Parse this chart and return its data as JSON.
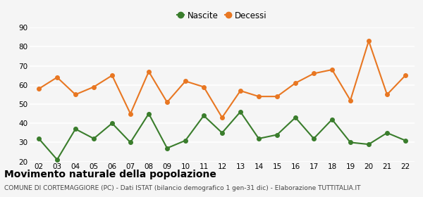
{
  "years": [
    "02",
    "03",
    "04",
    "05",
    "06",
    "07",
    "08",
    "09",
    "10",
    "11",
    "12",
    "13",
    "14",
    "15",
    "16",
    "17",
    "18",
    "19",
    "20",
    "21",
    "22"
  ],
  "nascite": [
    32,
    21,
    37,
    32,
    40,
    30,
    45,
    27,
    31,
    44,
    35,
    46,
    32,
    34,
    43,
    32,
    42,
    30,
    29,
    35,
    31
  ],
  "decessi": [
    58,
    64,
    55,
    59,
    65,
    45,
    67,
    51,
    62,
    59,
    43,
    57,
    54,
    54,
    61,
    66,
    68,
    52,
    83,
    55,
    65
  ],
  "nascite_color": "#3a7d2c",
  "decessi_color": "#e87722",
  "marker": "o",
  "marker_size": 4,
  "line_width": 1.5,
  "title": "Movimento naturale della popolazione",
  "subtitle": "COMUNE DI CORTEMAGGIORE (PC) - Dati ISTAT (bilancio demografico 1 gen-31 dic) - Elaborazione TUTTITALIA.IT",
  "legend_nascite": "Nascite",
  "legend_decessi": "Decessi",
  "ylim": [
    20,
    90
  ],
  "yticks": [
    20,
    30,
    40,
    50,
    60,
    70,
    80,
    90
  ],
  "background_color": "#f5f5f5",
  "grid_color": "#ffffff",
  "title_fontsize": 10,
  "subtitle_fontsize": 6.5,
  "legend_fontsize": 8.5,
  "tick_fontsize": 7.5
}
